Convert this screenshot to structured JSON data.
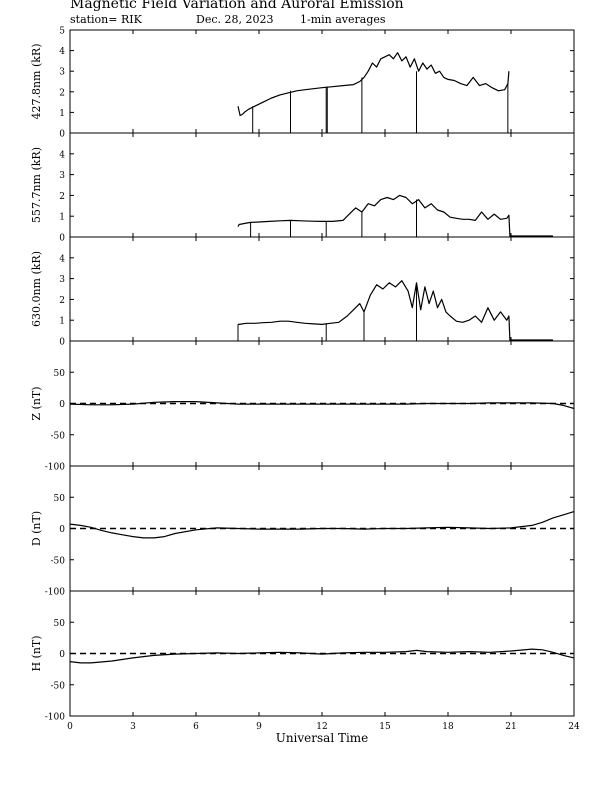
{
  "header": {
    "title": "Magnetic Field Variation and Auroral Emission",
    "station": "station= RIK",
    "date": "Dec. 28, 2023",
    "note": "1-min averages"
  },
  "chart_data": [
    {
      "type": "line",
      "ylabel": "427.8nm (kR)",
      "xlim": [
        0,
        24
      ],
      "ylim": [
        0,
        5
      ],
      "yticks": [
        "0",
        "1",
        "2",
        "3",
        "4",
        "5"
      ],
      "series": [
        {
          "color": "#000000",
          "x": [
            8.0,
            8.1,
            8.2,
            8.3,
            8.5,
            8.8,
            9.2,
            9.6,
            10.0,
            10.4,
            10.8,
            11.2,
            11.6,
            12.0,
            12.5,
            13.0,
            13.5,
            13.8,
            14.0,
            14.2,
            14.4,
            14.6,
            14.8,
            15.0,
            15.2,
            15.4,
            15.6,
            15.8,
            16.0,
            16.2,
            16.4,
            16.6,
            16.8,
            17.0,
            17.2,
            17.4,
            17.6,
            17.8,
            18.0,
            18.3,
            18.6,
            18.9,
            19.2,
            19.5,
            19.8,
            20.1,
            20.4,
            20.7,
            20.85,
            20.9
          ],
          "y": [
            1.3,
            0.85,
            0.9,
            1.0,
            1.15,
            1.3,
            1.5,
            1.7,
            1.85,
            1.95,
            2.05,
            2.1,
            2.15,
            2.2,
            2.25,
            2.3,
            2.35,
            2.5,
            2.7,
            3.0,
            3.4,
            3.2,
            3.6,
            3.7,
            3.8,
            3.6,
            3.9,
            3.5,
            3.7,
            3.2,
            3.6,
            3.0,
            3.4,
            3.1,
            3.3,
            2.9,
            3.0,
            2.7,
            2.6,
            2.55,
            2.4,
            2.3,
            2.7,
            2.3,
            2.4,
            2.2,
            2.05,
            2.1,
            2.4,
            3.0
          ]
        }
      ],
      "spikes": [
        8.7,
        10.5,
        12.2,
        12.25,
        13.9,
        16.5,
        20.85
      ]
    },
    {
      "type": "line",
      "ylabel": "557.7nm (kR)",
      "xlim": [
        0,
        24
      ],
      "ylim": [
        0,
        5
      ],
      "yticks": [
        "0",
        "1",
        "2",
        "3",
        "4"
      ],
      "series": [
        {
          "color": "#000000",
          "x": [
            8.0,
            8.05,
            8.3,
            8.6,
            9.0,
            9.5,
            10.0,
            10.5,
            11.0,
            11.5,
            12.0,
            12.5,
            13.0,
            13.3,
            13.6,
            13.9,
            14.2,
            14.5,
            14.8,
            15.1,
            15.4,
            15.7,
            16.0,
            16.3,
            16.6,
            16.9,
            17.2,
            17.5,
            17.8,
            18.1,
            18.4,
            18.7,
            19.0,
            19.3,
            19.6,
            19.9,
            20.2,
            20.5,
            20.8,
            20.9,
            20.95,
            23.0
          ],
          "y": [
            0.5,
            0.6,
            0.65,
            0.7,
            0.72,
            0.75,
            0.78,
            0.8,
            0.78,
            0.76,
            0.75,
            0.75,
            0.8,
            1.1,
            1.4,
            1.2,
            1.6,
            1.5,
            1.8,
            1.9,
            1.8,
            2.0,
            1.9,
            1.6,
            1.8,
            1.4,
            1.6,
            1.3,
            1.2,
            0.95,
            0.9,
            0.85,
            0.85,
            0.8,
            1.2,
            0.85,
            1.1,
            0.85,
            0.9,
            1.05,
            0.05,
            0.05
          ]
        }
      ],
      "spikes": [
        8.6,
        10.5,
        12.2,
        13.9,
        16.5
      ]
    },
    {
      "type": "line",
      "ylabel": "630.0nm (kR)",
      "xlim": [
        0,
        24
      ],
      "ylim": [
        0,
        5
      ],
      "yticks": [
        "0",
        "1",
        "2",
        "3",
        "4"
      ],
      "series": [
        {
          "color": "#000000",
          "x": [
            8.0,
            8.05,
            8.4,
            8.8,
            9.2,
            9.6,
            10.0,
            10.4,
            10.8,
            11.2,
            11.6,
            12.0,
            12.4,
            12.8,
            13.2,
            13.5,
            13.8,
            14.0,
            14.3,
            14.6,
            14.9,
            15.2,
            15.5,
            15.8,
            16.1,
            16.3,
            16.5,
            16.7,
            16.9,
            17.1,
            17.3,
            17.5,
            17.7,
            17.9,
            18.1,
            18.4,
            18.7,
            19.0,
            19.3,
            19.6,
            19.9,
            20.2,
            20.5,
            20.8,
            20.9,
            20.95,
            23.0
          ],
          "y": [
            0.8,
            0.8,
            0.85,
            0.85,
            0.88,
            0.9,
            0.95,
            0.95,
            0.9,
            0.85,
            0.82,
            0.8,
            0.85,
            0.9,
            1.2,
            1.5,
            1.8,
            1.4,
            2.2,
            2.7,
            2.5,
            2.8,
            2.6,
            2.9,
            2.4,
            1.6,
            2.8,
            1.5,
            2.6,
            1.8,
            2.4,
            1.6,
            2.0,
            1.4,
            1.2,
            0.95,
            0.9,
            1.0,
            1.2,
            0.9,
            1.6,
            1.0,
            1.4,
            1.0,
            1.2,
            0.05,
            0.05
          ]
        }
      ],
      "spikes": [
        8.0,
        12.2,
        14.0,
        16.5
      ]
    },
    {
      "type": "line",
      "ylabel": "Z (nT)",
      "xlim": [
        0,
        24
      ],
      "ylim": [
        -100,
        100
      ],
      "yticks": [
        "-100",
        "-50",
        "0",
        "50"
      ],
      "zero_line": "dashed",
      "series": [
        {
          "color": "#000000",
          "x": [
            0,
            1,
            2,
            3,
            4,
            5,
            6,
            7,
            8,
            9,
            10,
            11,
            12,
            13,
            14,
            15,
            16,
            17,
            18,
            19,
            20,
            21,
            22,
            23,
            23.5,
            24
          ],
          "y": [
            -1,
            -2,
            -2,
            -1,
            2,
            3,
            3,
            1,
            -1,
            -1,
            -1,
            -1,
            -1,
            -1,
            -1,
            -1,
            -1,
            0,
            0,
            0,
            1,
            1,
            1,
            0,
            -3,
            -8
          ]
        }
      ]
    },
    {
      "type": "line",
      "ylabel": "D (nT)",
      "xlim": [
        0,
        24
      ],
      "ylim": [
        -100,
        100
      ],
      "yticks": [
        "-100",
        "-50",
        "0",
        "50"
      ],
      "zero_line": "dashed",
      "series": [
        {
          "color": "#000000",
          "x": [
            0,
            0.5,
            1,
            1.5,
            2,
            2.5,
            3,
            3.5,
            4,
            4.5,
            5,
            6,
            7,
            8,
            9,
            10,
            11,
            12,
            13,
            14,
            15,
            16,
            17,
            18,
            19,
            20,
            21,
            22,
            22.5,
            23,
            23.5,
            24
          ],
          "y": [
            7,
            5,
            2,
            -3,
            -7,
            -10,
            -13,
            -15,
            -15,
            -13,
            -8,
            -2,
            1,
            0,
            -1,
            -1,
            -1,
            0,
            0,
            -1,
            0,
            0,
            1,
            2,
            1,
            0,
            1,
            5,
            10,
            17,
            22,
            27
          ]
        }
      ]
    },
    {
      "type": "line",
      "ylabel": "H (nT)",
      "xlim": [
        0,
        24
      ],
      "ylim": [
        -100,
        100
      ],
      "yticks": [
        "-100",
        "-50",
        "0",
        "50"
      ],
      "zero_line": "dashed",
      "xticks": [
        "0",
        "3",
        "6",
        "9",
        "12",
        "15",
        "18",
        "21",
        "24"
      ],
      "xlabel": "Universal Time",
      "series": [
        {
          "color": "#000000",
          "x": [
            0,
            0.5,
            1,
            2,
            3,
            4,
            5,
            6,
            7,
            8,
            9,
            10,
            11,
            12,
            13,
            14,
            15,
            16,
            16.5,
            17,
            18,
            19,
            20,
            21,
            22,
            22.5,
            23,
            23.5,
            24
          ],
          "y": [
            -13,
            -15,
            -15,
            -12,
            -7,
            -3,
            -1,
            0,
            1,
            0,
            1,
            2,
            1,
            -1,
            1,
            2,
            2,
            3,
            5,
            3,
            2,
            3,
            2,
            4,
            7,
            6,
            2,
            -3,
            -7
          ]
        }
      ]
    }
  ]
}
